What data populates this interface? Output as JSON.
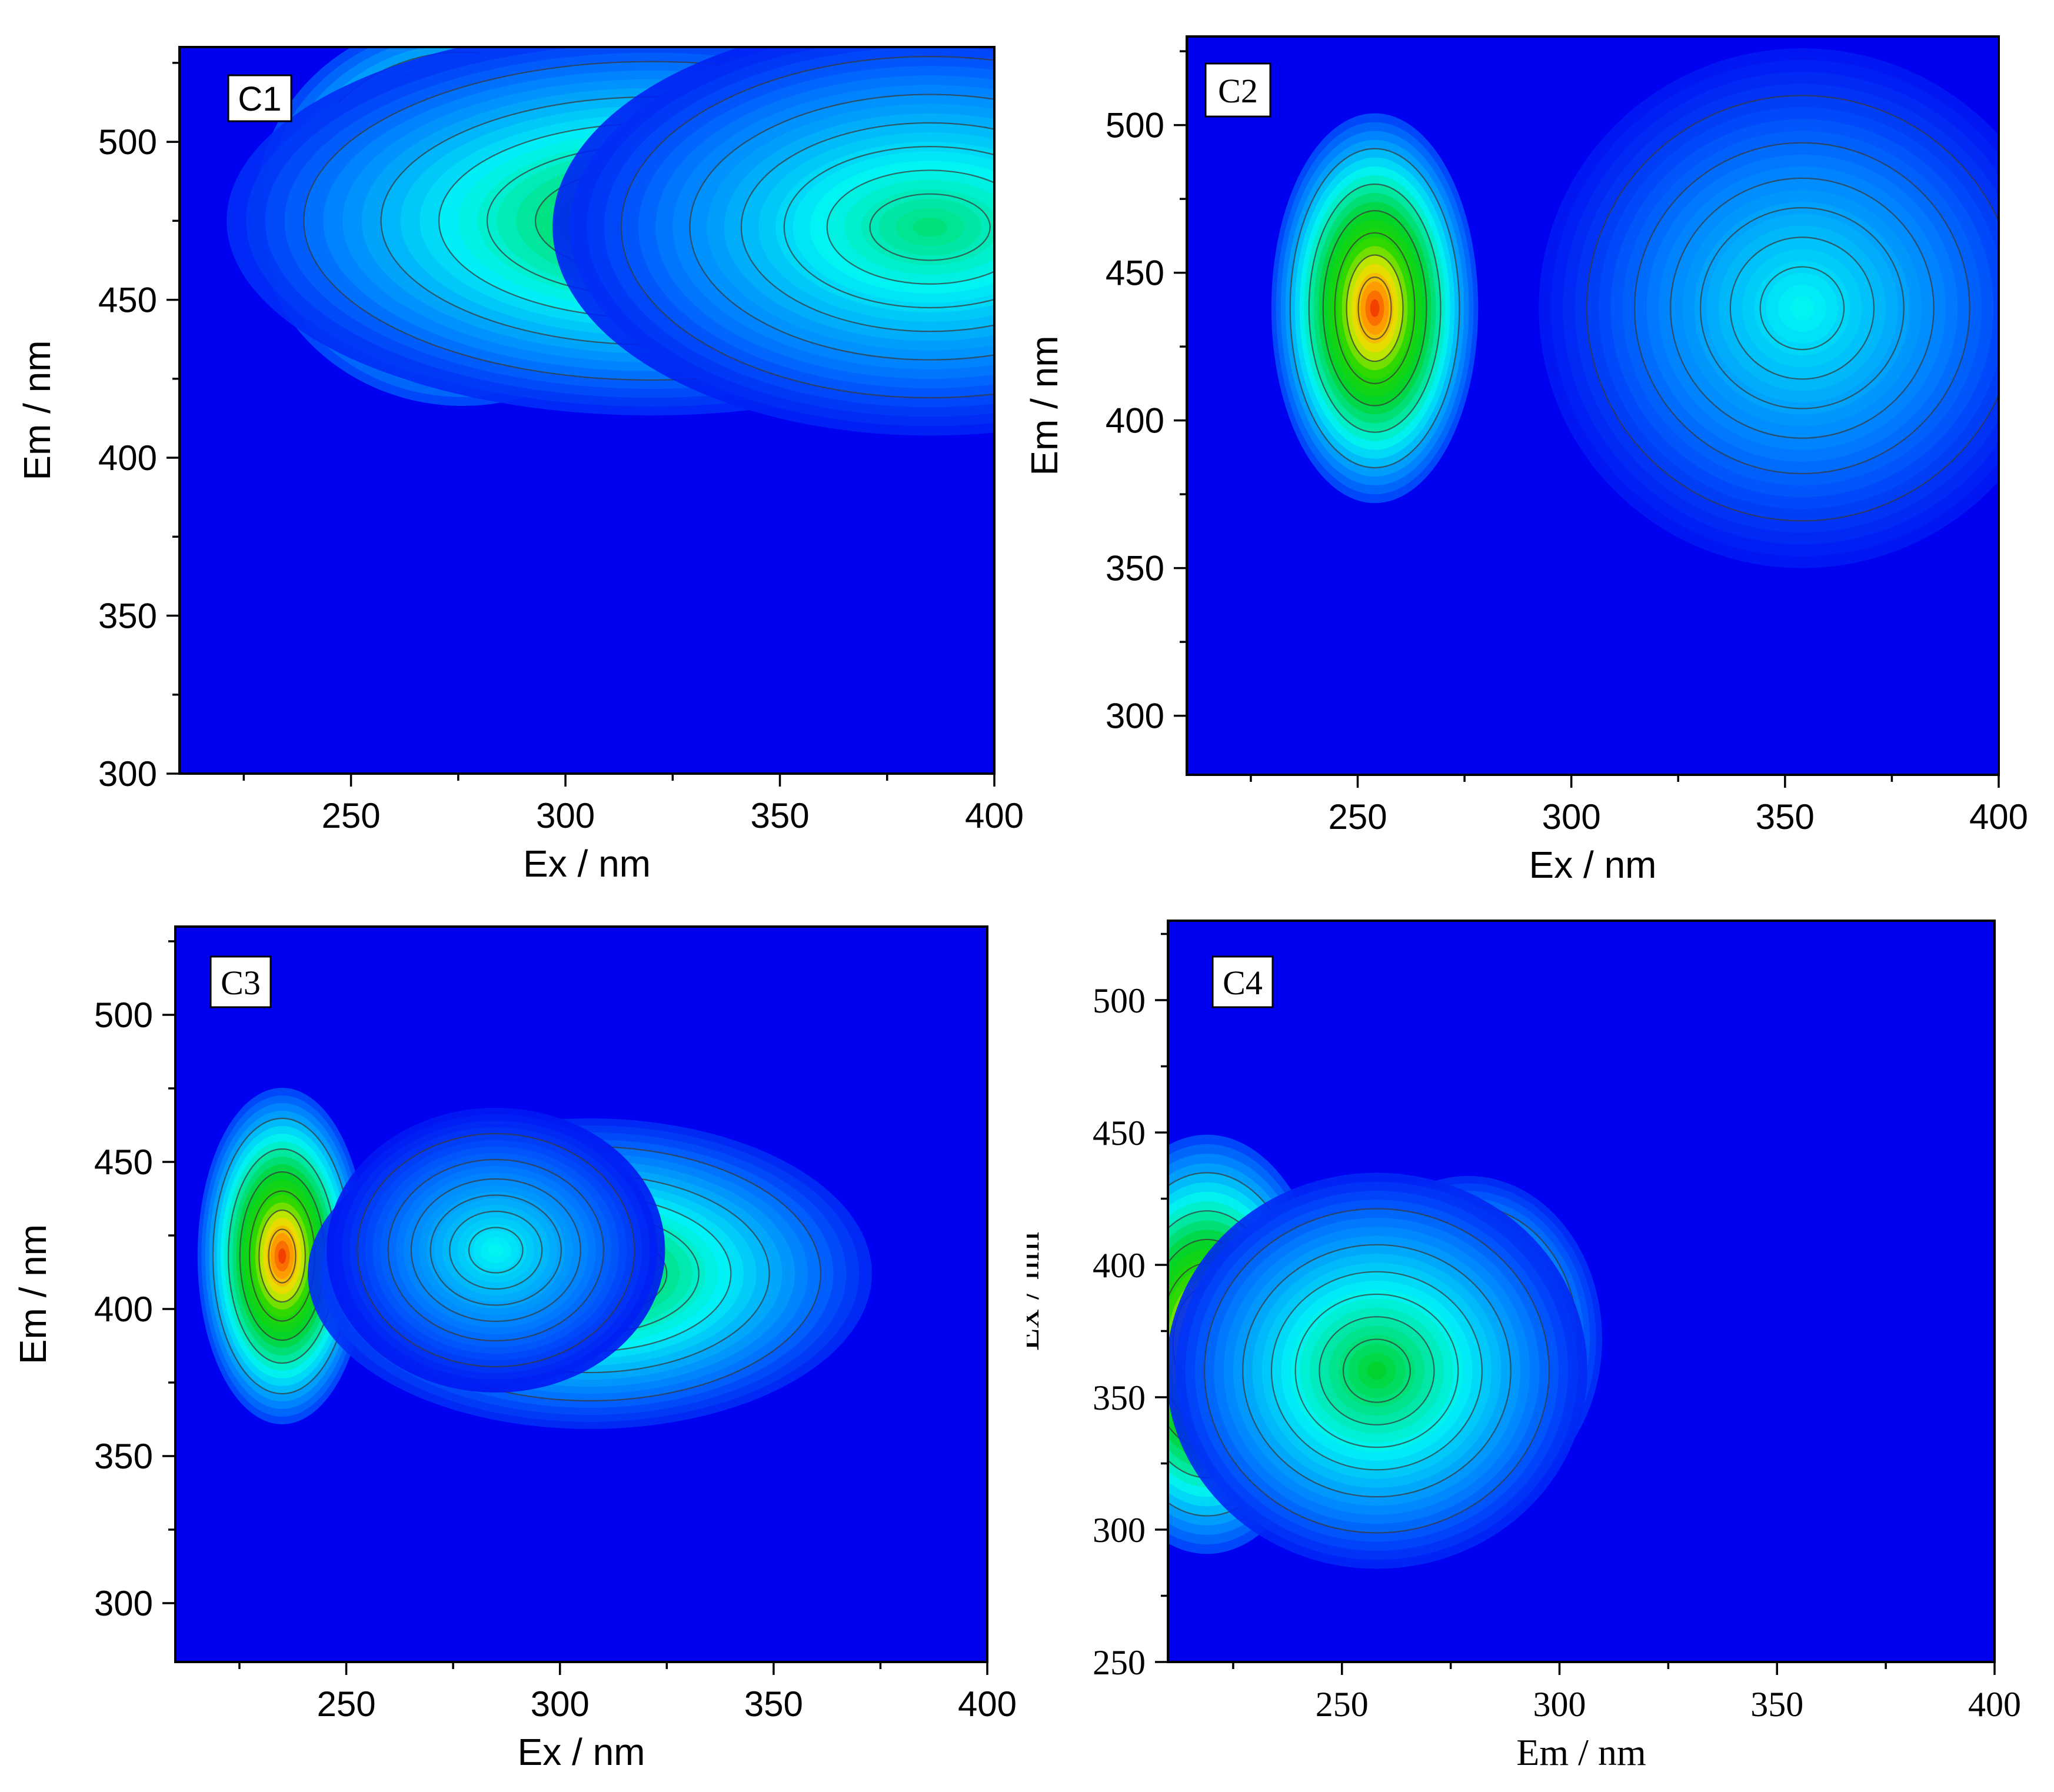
{
  "chart_data": [
    {
      "type": "heatmap",
      "panel_label": "C1",
      "xlabel": "Ex / nm",
      "ylabel": "Em / nm",
      "xlim": [
        210,
        400
      ],
      "ylim": [
        300,
        530
      ],
      "xticks": [
        250,
        300,
        350,
        400
      ],
      "yticks": [
        300,
        350,
        400,
        450,
        500
      ],
      "tick_font": "sans",
      "peaks": [
        {
          "x": 276,
          "y": 478,
          "sx": 22,
          "sy": 28,
          "amp": 1.0
        },
        {
          "x": 320,
          "y": 475,
          "sx": 45,
          "sy": 28,
          "amp": 0.55
        },
        {
          "x": 385,
          "y": 473,
          "sx": 40,
          "sy": 30,
          "amp": 0.42
        }
      ]
    },
    {
      "type": "heatmap",
      "panel_label": "C2",
      "xlabel": "Ex / nm",
      "ylabel": "Em / nm",
      "xlim": [
        210,
        400
      ],
      "ylim": [
        280,
        530
      ],
      "xticks": [
        250,
        300,
        350,
        400
      ],
      "yticks": [
        300,
        350,
        400,
        450,
        500
      ],
      "tick_font": "sans",
      "peaks": [
        {
          "x": 254,
          "y": 438,
          "sx": 11,
          "sy": 30,
          "amp": 1.0
        },
        {
          "x": 354,
          "y": 438,
          "sx": 28,
          "sy": 40,
          "amp": 0.3
        }
      ]
    },
    {
      "type": "heatmap",
      "panel_label": "C3",
      "xlabel": "Ex / nm",
      "ylabel": "Em / nm",
      "xlim": [
        210,
        400
      ],
      "ylim": [
        280,
        530
      ],
      "xticks": [
        250,
        300,
        350,
        400
      ],
      "yticks": [
        300,
        350,
        400,
        450,
        500
      ],
      "tick_font": "sans",
      "peaks": [
        {
          "x": 235,
          "y": 418,
          "sx": 9,
          "sy": 26,
          "amp": 1.0
        },
        {
          "x": 307,
          "y": 412,
          "sx": 30,
          "sy": 24,
          "amp": 0.56
        },
        {
          "x": 285,
          "y": 420,
          "sx": 18,
          "sy": 22,
          "amp": 0.3
        }
      ]
    },
    {
      "type": "heatmap",
      "panel_label": "C4",
      "xlabel": "Em / nm",
      "ylabel": "Ex / nm",
      "xlim": [
        210,
        400
      ],
      "ylim": [
        250,
        530
      ],
      "xticks": [
        250,
        300,
        350,
        400
      ],
      "yticks": [
        250,
        300,
        350,
        400,
        450,
        500
      ],
      "tick_font": "serif",
      "peaks": [
        {
          "x": 219,
          "y": 370,
          "sx": 13,
          "sy": 36,
          "amp": 1.0
        },
        {
          "x": 279,
          "y": 372,
          "sx": 14,
          "sy": 28,
          "amp": 0.62
        },
        {
          "x": 258,
          "y": 360,
          "sx": 22,
          "sy": 34,
          "amp": 0.5
        }
      ]
    }
  ]
}
